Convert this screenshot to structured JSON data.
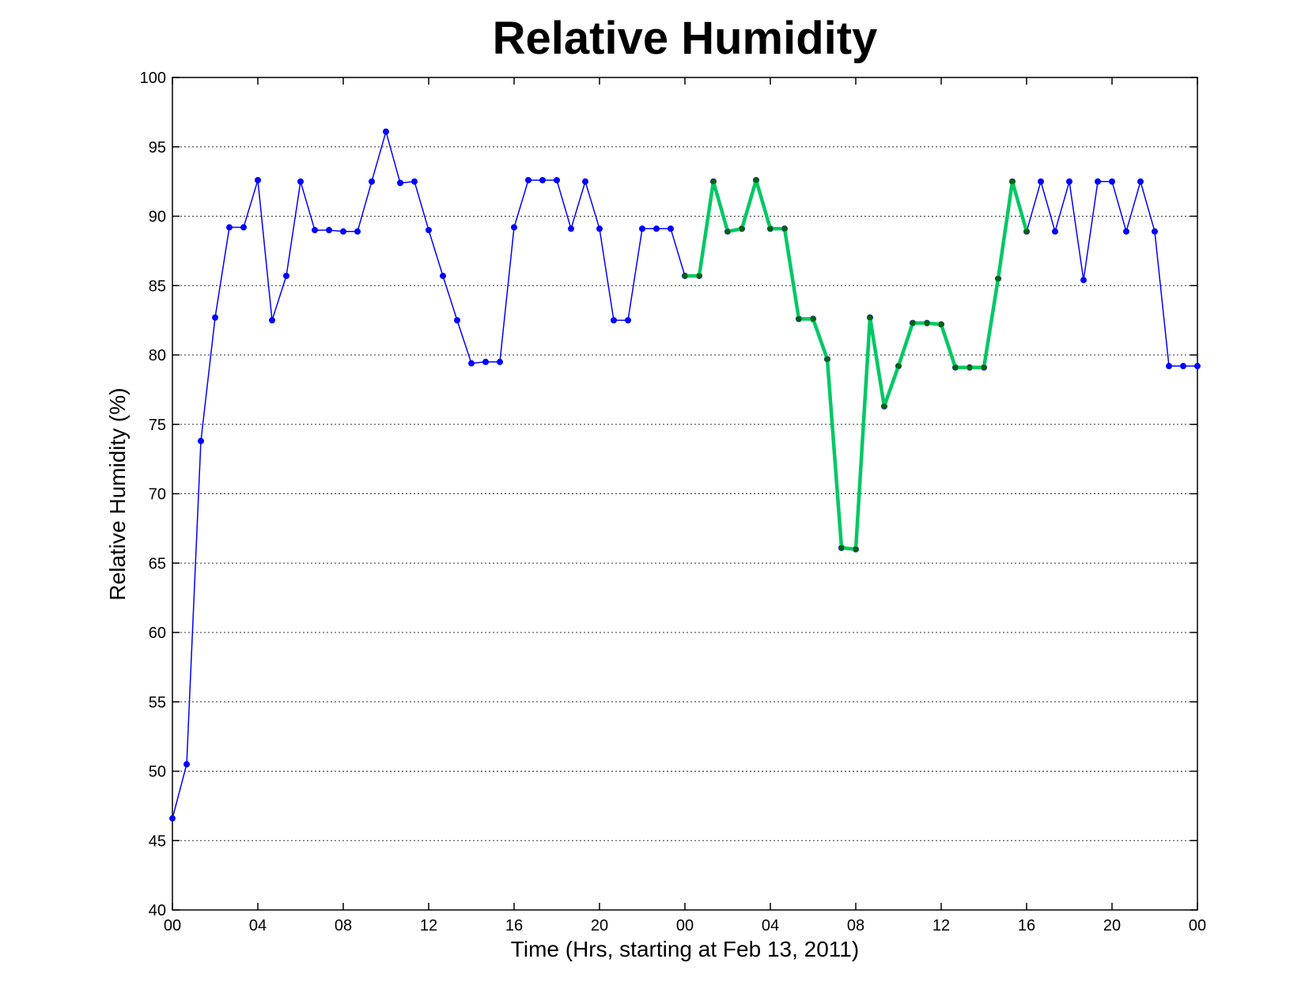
{
  "chart_data": {
    "type": "line",
    "title": "Relative Humidity",
    "xlabel": "Time (Hrs, starting at Feb 13, 2011)",
    "ylabel": "Relative Humidity (%)",
    "ylim": [
      40,
      100
    ],
    "yticks": [
      40,
      45,
      50,
      55,
      60,
      65,
      70,
      75,
      80,
      85,
      90,
      95,
      100
    ],
    "xlim": [
      0,
      72
    ],
    "xticks": [
      "00",
      "04",
      "08",
      "12",
      "16",
      "20",
      "00",
      "04",
      "08",
      "12",
      "16",
      "20",
      "00"
    ],
    "grid": "y-dotted",
    "series": [
      {
        "color": "#0000ff",
        "marker_color": "#0000ff",
        "x": [
          0,
          1,
          2,
          3,
          4,
          5,
          6,
          7,
          8,
          9,
          10,
          11,
          12,
          13,
          14,
          15,
          16,
          17,
          18,
          19,
          20,
          21,
          22,
          23,
          24,
          25,
          26,
          27,
          28,
          29,
          30,
          31,
          32,
          33,
          34,
          35,
          36,
          37,
          38,
          39,
          40,
          41,
          42,
          43,
          44,
          45,
          46,
          47,
          48,
          49,
          50,
          51,
          52,
          53,
          54,
          55,
          56,
          57,
          58,
          59,
          60,
          61,
          62,
          63,
          64,
          65,
          66,
          67,
          68,
          69,
          70,
          71,
          72
        ],
        "y": [
          46.6,
          50.5,
          73.8,
          82.7,
          89.2,
          89.2,
          92.6,
          82.5,
          85.7,
          92.5,
          89.0,
          89.0,
          88.9,
          88.9,
          92.5,
          96.1,
          92.4,
          92.5,
          89.0,
          85.7,
          82.5,
          79.4,
          79.5,
          79.5,
          89.2,
          92.6,
          92.6,
          92.6,
          89.1,
          92.5,
          89.1,
          82.5,
          82.5,
          89.1,
          89.1,
          89.1,
          85.7,
          85.7,
          92.5,
          88.9,
          89.1,
          92.6,
          89.1,
          89.1,
          82.6,
          82.6,
          79.7,
          66.1,
          66.0,
          82.7,
          76.3,
          79.2,
          82.3,
          82.3,
          82.2,
          79.1,
          79.1,
          79.1,
          85.5,
          92.5,
          88.9,
          92.5,
          88.9,
          92.5,
          85.4,
          92.5,
          92.5,
          88.9,
          92.5,
          88.9,
          79.2,
          79.2,
          79.2
        ]
      },
      {
        "color": "#00c864",
        "marker_color": "#006400",
        "x": [
          36,
          37,
          38,
          39,
          40,
          41,
          42,
          43,
          44,
          45,
          46,
          47,
          48,
          49,
          50,
          51,
          52,
          53,
          54,
          55,
          56,
          57,
          58,
          59,
          60
        ],
        "y": [
          85.7,
          85.7,
          92.5,
          88.9,
          89.1,
          92.6,
          89.1,
          89.1,
          82.6,
          82.6,
          79.7,
          66.1,
          66.0,
          82.7,
          76.3,
          79.2,
          82.3,
          82.3,
          82.2,
          79.1,
          79.1,
          79.1,
          85.5,
          92.5,
          88.9
        ]
      }
    ]
  }
}
